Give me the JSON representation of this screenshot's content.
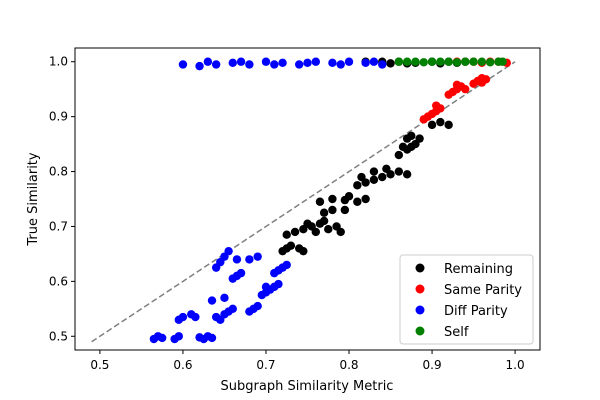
{
  "chart_data": {
    "type": "scatter",
    "title": "",
    "xlabel": "Subgraph Similarity Metric",
    "ylabel": "True Similarity",
    "xlim": [
      0.47,
      1.03
    ],
    "ylim": [
      0.475,
      1.025
    ],
    "xticks": [
      "0.5",
      "0.6",
      "0.7",
      "0.8",
      "0.9",
      "1.0"
    ],
    "yticks": [
      "0.5",
      "0.6",
      "0.7",
      "0.8",
      "0.9",
      "1.0"
    ],
    "grid": false,
    "legend_position": "lower-right",
    "reference_line": {
      "x": [
        0.49,
        1.0
      ],
      "y": [
        0.49,
        1.0
      ],
      "style": "dashed",
      "color": "#808080"
    },
    "series": [
      {
        "name": "Remaining",
        "color": "#000000",
        "points": [
          [
            0.72,
            0.655
          ],
          [
            0.725,
            0.66
          ],
          [
            0.73,
            0.665
          ],
          [
            0.74,
            0.66
          ],
          [
            0.745,
            0.655
          ],
          [
            0.725,
            0.685
          ],
          [
            0.735,
            0.69
          ],
          [
            0.745,
            0.695
          ],
          [
            0.755,
            0.7
          ],
          [
            0.765,
            0.705
          ],
          [
            0.775,
            0.695
          ],
          [
            0.785,
            0.7
          ],
          [
            0.79,
            0.69
          ],
          [
            0.76,
            0.69
          ],
          [
            0.77,
            0.71
          ],
          [
            0.75,
            0.705
          ],
          [
            0.77,
            0.725
          ],
          [
            0.78,
            0.73
          ],
          [
            0.795,
            0.73
          ],
          [
            0.765,
            0.745
          ],
          [
            0.78,
            0.75
          ],
          [
            0.795,
            0.748
          ],
          [
            0.81,
            0.745
          ],
          [
            0.82,
            0.75
          ],
          [
            0.8,
            0.755
          ],
          [
            0.81,
            0.775
          ],
          [
            0.82,
            0.78
          ],
          [
            0.83,
            0.785
          ],
          [
            0.84,
            0.79
          ],
          [
            0.85,
            0.795
          ],
          [
            0.86,
            0.8
          ],
          [
            0.87,
            0.795
          ],
          [
            0.83,
            0.8
          ],
          [
            0.845,
            0.805
          ],
          [
            0.815,
            0.79
          ],
          [
            0.86,
            0.83
          ],
          [
            0.87,
            0.84
          ],
          [
            0.875,
            0.845
          ],
          [
            0.88,
            0.85
          ],
          [
            0.885,
            0.86
          ],
          [
            0.87,
            0.86
          ],
          [
            0.875,
            0.865
          ],
          [
            0.865,
            0.845
          ],
          [
            0.9,
            0.885
          ],
          [
            0.91,
            0.89
          ],
          [
            0.92,
            0.885
          ],
          [
            0.82,
            1.0
          ],
          [
            0.84,
            1.0
          ],
          [
            0.86,
            1.0
          ],
          [
            0.88,
            0.998
          ],
          [
            0.9,
            1.0
          ],
          [
            0.92,
            1.0
          ],
          [
            0.94,
            1.0
          ],
          [
            0.87,
            0.997
          ],
          [
            0.91,
            0.997
          ],
          [
            0.85,
            0.997
          ],
          [
            0.93,
            0.998
          ]
        ]
      },
      {
        "name": "Same Parity",
        "color": "#ff0000",
        "points": [
          [
            0.89,
            0.895
          ],
          [
            0.895,
            0.9
          ],
          [
            0.9,
            0.905
          ],
          [
            0.905,
            0.91
          ],
          [
            0.91,
            0.915
          ],
          [
            0.905,
            0.92
          ],
          [
            0.92,
            0.94
          ],
          [
            0.925,
            0.945
          ],
          [
            0.93,
            0.95
          ],
          [
            0.935,
            0.955
          ],
          [
            0.94,
            0.95
          ],
          [
            0.93,
            0.958
          ],
          [
            0.95,
            0.96
          ],
          [
            0.955,
            0.965
          ],
          [
            0.96,
            0.97
          ],
          [
            0.965,
            0.968
          ],
          [
            0.96,
            0.962
          ],
          [
            0.93,
            1.0
          ],
          [
            0.95,
            1.0
          ],
          [
            0.97,
            1.0
          ],
          [
            0.98,
            1.0
          ],
          [
            0.99,
            0.998
          ],
          [
            0.96,
            0.998
          ]
        ]
      },
      {
        "name": "Diff Parity",
        "color": "#0000ff",
        "points": [
          [
            0.565,
            0.495
          ],
          [
            0.57,
            0.5
          ],
          [
            0.575,
            0.497
          ],
          [
            0.59,
            0.495
          ],
          [
            0.595,
            0.5
          ],
          [
            0.625,
            0.495
          ],
          [
            0.63,
            0.5
          ],
          [
            0.635,
            0.497
          ],
          [
            0.62,
            0.498
          ],
          [
            0.595,
            0.53
          ],
          [
            0.6,
            0.535
          ],
          [
            0.61,
            0.54
          ],
          [
            0.615,
            0.535
          ],
          [
            0.645,
            0.53
          ],
          [
            0.65,
            0.54
          ],
          [
            0.655,
            0.545
          ],
          [
            0.64,
            0.535
          ],
          [
            0.66,
            0.55
          ],
          [
            0.68,
            0.545
          ],
          [
            0.685,
            0.55
          ],
          [
            0.69,
            0.555
          ],
          [
            0.635,
            0.565
          ],
          [
            0.65,
            0.57
          ],
          [
            0.695,
            0.575
          ],
          [
            0.7,
            0.58
          ],
          [
            0.705,
            0.585
          ],
          [
            0.71,
            0.59
          ],
          [
            0.715,
            0.595
          ],
          [
            0.7,
            0.59
          ],
          [
            0.66,
            0.605
          ],
          [
            0.665,
            0.61
          ],
          [
            0.67,
            0.615
          ],
          [
            0.71,
            0.615
          ],
          [
            0.715,
            0.62
          ],
          [
            0.72,
            0.625
          ],
          [
            0.725,
            0.63
          ],
          [
            0.64,
            0.625
          ],
          [
            0.645,
            0.635
          ],
          [
            0.65,
            0.645
          ],
          [
            0.655,
            0.655
          ],
          [
            0.665,
            0.64
          ],
          [
            0.68,
            0.64
          ],
          [
            0.69,
            0.645
          ],
          [
            0.6,
            0.995
          ],
          [
            0.62,
            0.992
          ],
          [
            0.64,
            0.995
          ],
          [
            0.66,
            0.998
          ],
          [
            0.68,
            0.995
          ],
          [
            0.7,
            1.0
          ],
          [
            0.72,
            0.998
          ],
          [
            0.74,
            0.995
          ],
          [
            0.76,
            1.0
          ],
          [
            0.78,
            0.998
          ],
          [
            0.8,
            1.0
          ],
          [
            0.82,
            0.998
          ],
          [
            0.84,
            0.995
          ],
          [
            0.63,
            1.0
          ],
          [
            0.67,
            1.0
          ],
          [
            0.71,
            0.995
          ],
          [
            0.75,
            0.998
          ],
          [
            0.79,
            0.995
          ],
          [
            0.83,
            1.0
          ]
        ]
      },
      {
        "name": "Self",
        "color": "#008000",
        "points": [
          [
            0.86,
            1.0
          ],
          [
            0.88,
            1.0
          ],
          [
            0.9,
            1.0
          ],
          [
            0.92,
            1.0
          ],
          [
            0.94,
            1.0
          ],
          [
            0.96,
            1.0
          ],
          [
            0.98,
            1.0
          ],
          [
            0.985,
            1.0
          ],
          [
            0.89,
            0.999
          ],
          [
            0.93,
            0.999
          ],
          [
            0.97,
            0.999
          ],
          [
            0.87,
            1.0
          ],
          [
            0.91,
            1.0
          ],
          [
            0.95,
            1.0
          ]
        ]
      }
    ]
  }
}
